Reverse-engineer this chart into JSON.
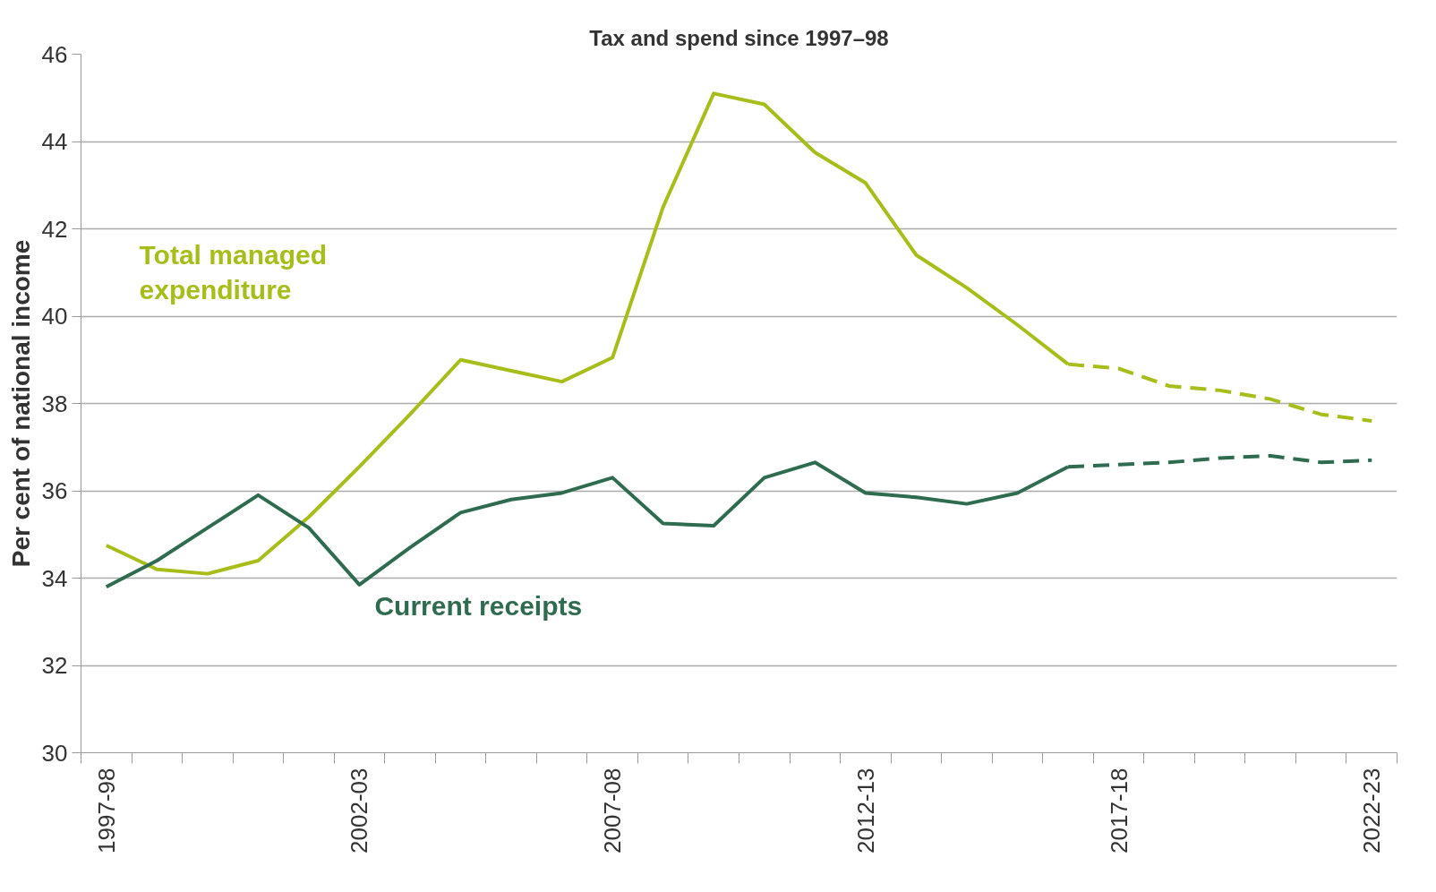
{
  "chart_data": {
    "type": "line",
    "title": "Tax and spend since 1997–98",
    "ylabel": "Per cent of national income",
    "categories": [
      "1997-98",
      null,
      null,
      null,
      null,
      "2002-03",
      null,
      null,
      null,
      null,
      "2007-08",
      null,
      null,
      null,
      null,
      "2012-13",
      null,
      null,
      null,
      null,
      "2017-18",
      null,
      null,
      null,
      null,
      "2022-23"
    ],
    "series": [
      {
        "name": "Total managed\nexpenditure",
        "color": "#a8bd1a",
        "line_style": "solid",
        "values": [
          34.75,
          34.2,
          34.1,
          34.4,
          35.4,
          36.55,
          37.75,
          39.0,
          38.75,
          38.5,
          39.05,
          42.5,
          45.1,
          44.85,
          43.75,
          43.05,
          41.4,
          40.65,
          39.8,
          38.9,
          null,
          null,
          null,
          null,
          null,
          null
        ]
      },
      {
        "color": "#a8bd1a",
        "line_style": "dashed",
        "values": [
          null,
          null,
          null,
          null,
          null,
          null,
          null,
          null,
          null,
          null,
          null,
          null,
          null,
          null,
          null,
          null,
          null,
          null,
          null,
          38.9,
          38.8,
          38.4,
          38.3,
          38.1,
          37.75,
          37.6
        ]
      },
      {
        "name": "Current receipts",
        "color": "#2e6b4f",
        "line_style": "solid",
        "values": [
          33.8,
          34.4,
          35.15,
          35.9,
          35.15,
          33.85,
          34.7,
          35.5,
          35.8,
          35.95,
          36.3,
          35.25,
          35.2,
          36.3,
          36.65,
          35.95,
          35.85,
          35.7,
          35.95,
          36.55,
          null,
          null,
          null,
          null,
          null,
          null
        ]
      },
      {
        "color": "#2e6b4f",
        "line_style": "dashed",
        "values": [
          null,
          null,
          null,
          null,
          null,
          null,
          null,
          null,
          null,
          null,
          null,
          null,
          null,
          null,
          null,
          null,
          null,
          null,
          null,
          36.55,
          36.6,
          36.65,
          36.75,
          36.8,
          36.65,
          36.7
        ]
      }
    ],
    "ylim": [
      30,
      46
    ],
    "yticks": [
      30,
      32,
      34,
      36,
      38,
      40,
      42,
      44,
      46
    ],
    "grid": "y",
    "marker": "none"
  }
}
